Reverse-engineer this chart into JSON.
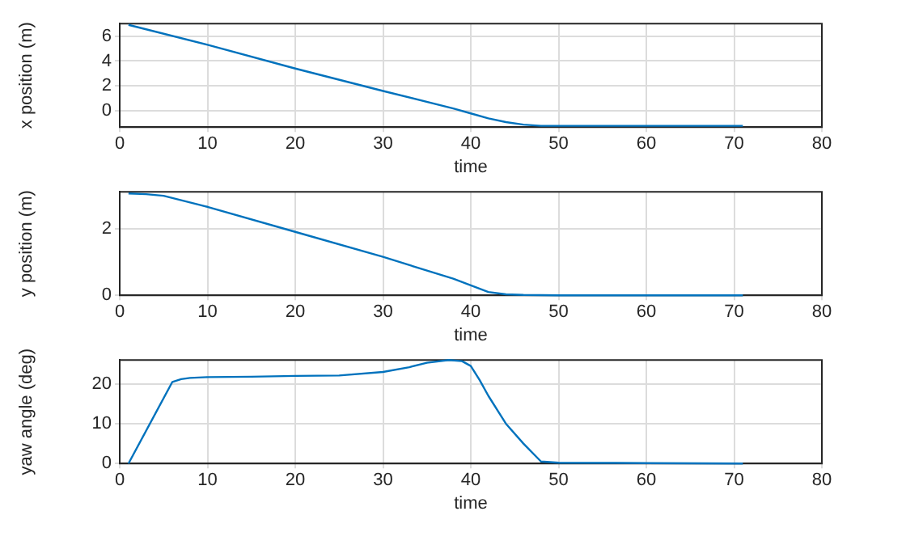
{
  "chart_data": [
    {
      "type": "line",
      "xlabel": "time",
      "ylabel": "x position (m)",
      "xlim": [
        0,
        80
      ],
      "xticks": [
        0,
        10,
        20,
        30,
        40,
        50,
        60,
        70,
        80
      ],
      "ylim": [
        -1.3,
        7
      ],
      "yticks": [
        0,
        2,
        4,
        6
      ],
      "grid": true,
      "marker": "none",
      "legend": false,
      "series": [
        {
          "color": "#0072bd",
          "x": [
            1,
            10,
            20,
            30,
            38,
            40,
            42,
            44,
            46,
            48,
            50,
            60,
            71
          ],
          "values": [
            6.9,
            5.3,
            3.4,
            1.6,
            0.2,
            -0.2,
            -0.6,
            -0.9,
            -1.1,
            -1.2,
            -1.2,
            -1.2,
            -1.2
          ]
        }
      ]
    },
    {
      "type": "line",
      "xlabel": "time",
      "ylabel": "y position (m)",
      "xlim": [
        0,
        80
      ],
      "xticks": [
        0,
        10,
        20,
        30,
        40,
        50,
        60,
        70,
        80
      ],
      "ylim": [
        0,
        3.1
      ],
      "yticks": [
        0,
        2
      ],
      "grid": true,
      "marker": "none",
      "legend": false,
      "series": [
        {
          "color": "#0072bd",
          "x": [
            1,
            3,
            5,
            10,
            20,
            30,
            38,
            40,
            42,
            44,
            46,
            50,
            60,
            71
          ],
          "values": [
            3.05,
            3.03,
            2.98,
            2.65,
            1.9,
            1.15,
            0.5,
            0.3,
            0.1,
            0.03,
            0.01,
            0,
            0,
            0
          ]
        }
      ]
    },
    {
      "type": "line",
      "xlabel": "time",
      "ylabel": "yaw angle (deg)",
      "xlim": [
        0,
        80
      ],
      "xticks": [
        0,
        10,
        20,
        30,
        40,
        50,
        60,
        70,
        80
      ],
      "ylim": [
        0,
        26
      ],
      "yticks": [
        0,
        10,
        20
      ],
      "grid": true,
      "marker": "none",
      "legend": false,
      "series": [
        {
          "color": "#0072bd",
          "x": [
            1,
            6,
            7,
            8,
            10,
            15,
            20,
            25,
            30,
            33,
            35,
            37.5,
            39,
            40,
            41,
            42,
            44,
            46,
            48,
            50,
            60,
            71
          ],
          "values": [
            0,
            20.5,
            21.2,
            21.5,
            21.7,
            21.8,
            22,
            22.1,
            23,
            24.2,
            25.3,
            26,
            25.7,
            24.5,
            21,
            17,
            10,
            5,
            0.5,
            0.2,
            0.1,
            0
          ]
        }
      ]
    }
  ]
}
